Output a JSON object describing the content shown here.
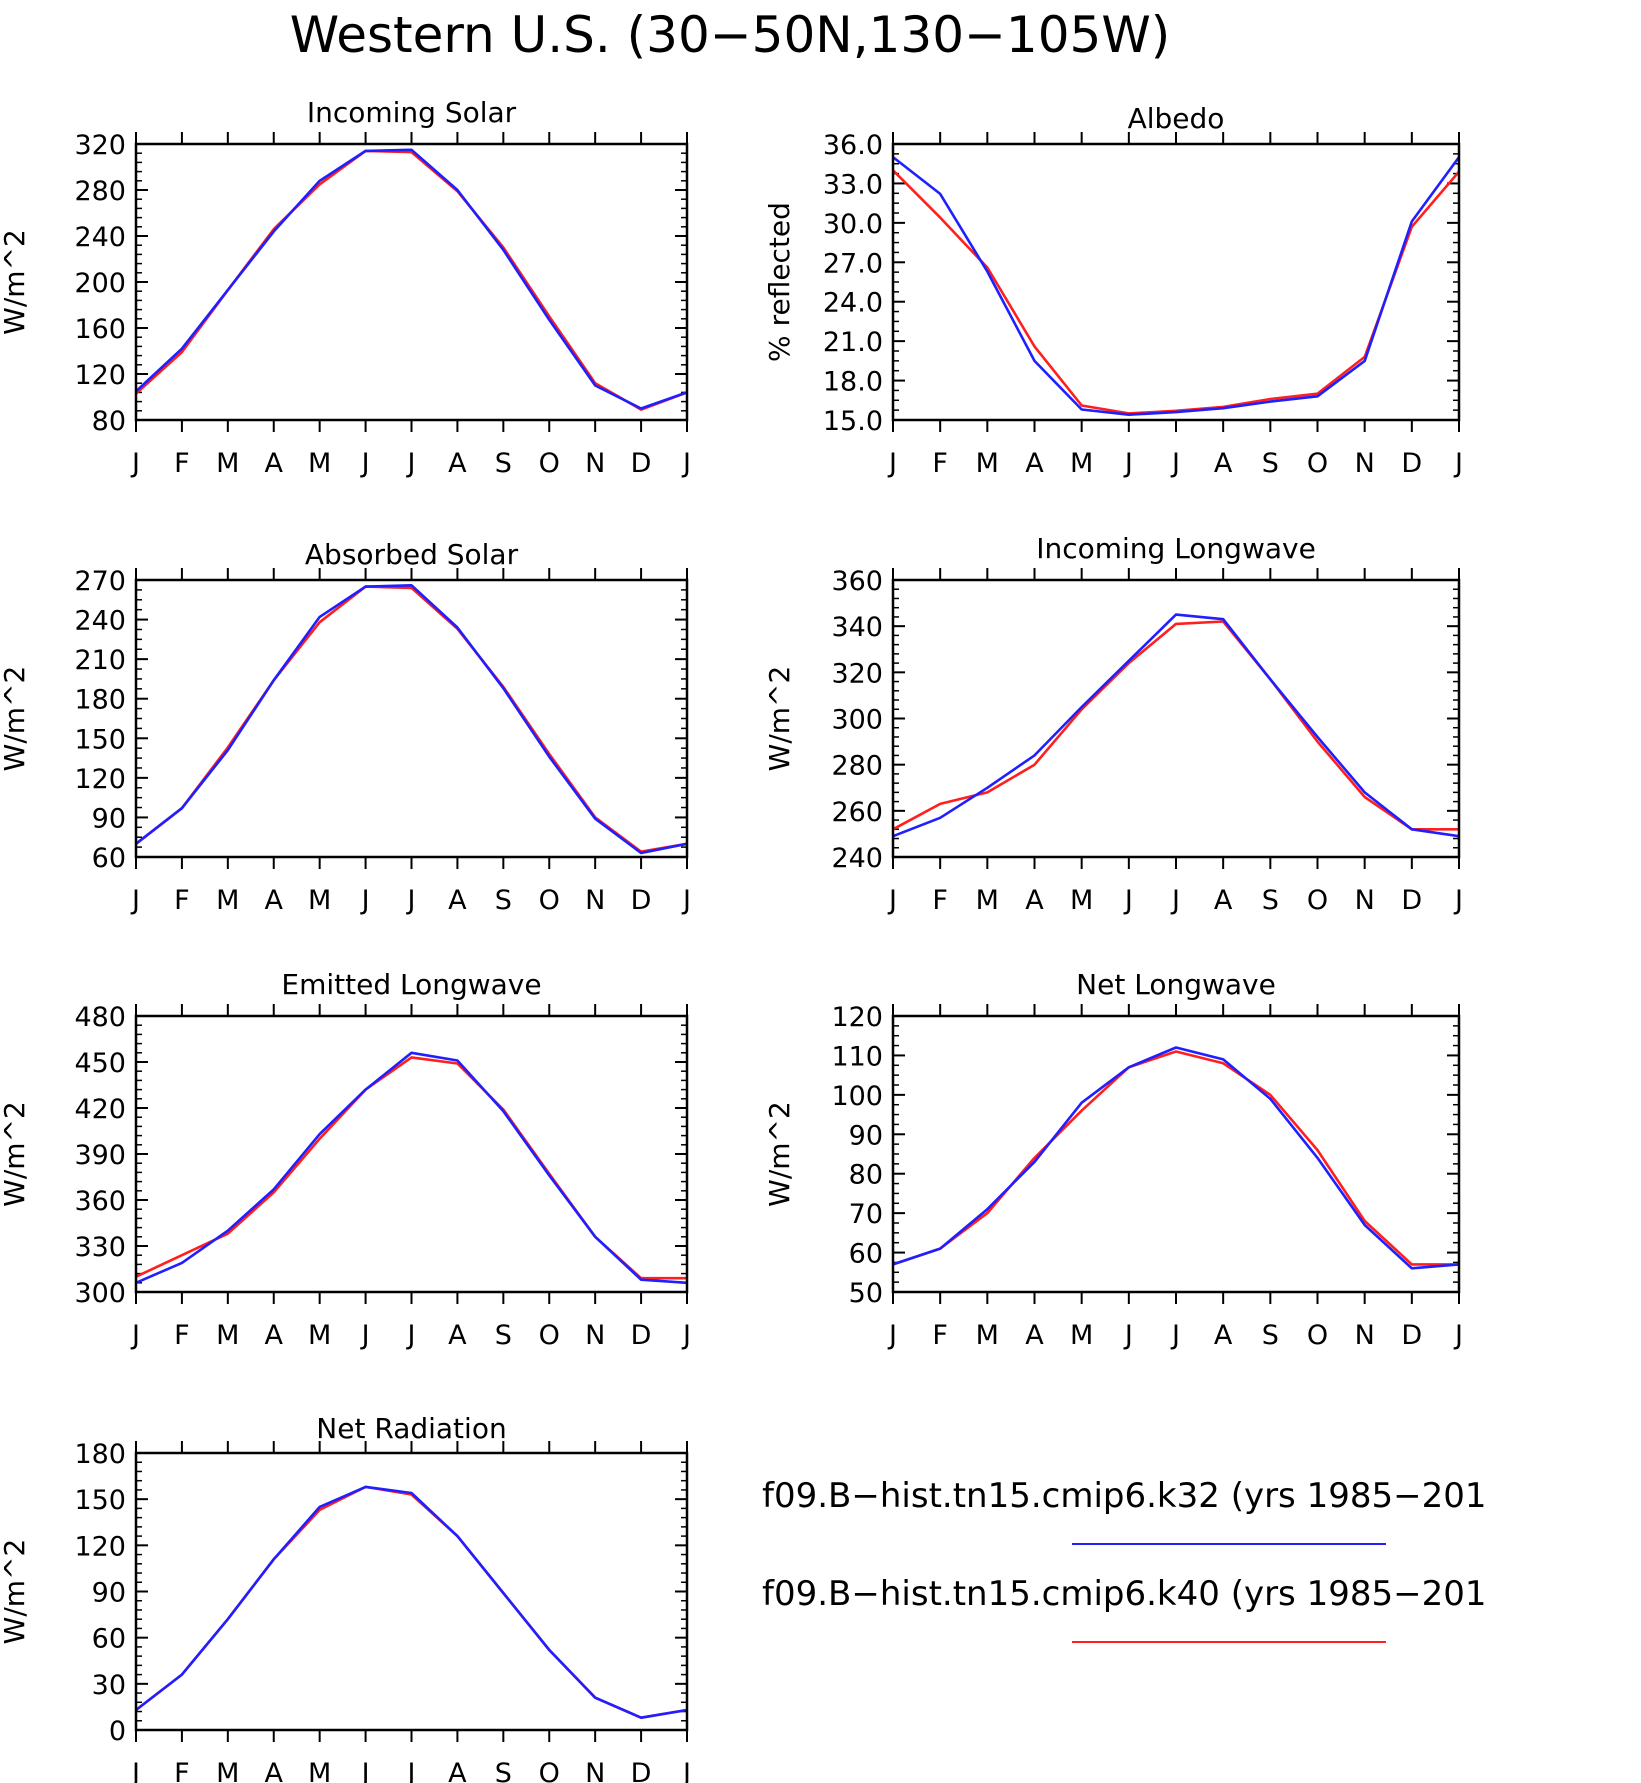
{
  "title": "Western U.S. (30−50N,130−105W)",
  "months": [
    "J",
    "F",
    "M",
    "A",
    "M",
    "J",
    "J",
    "A",
    "S",
    "O",
    "N",
    "D",
    "J"
  ],
  "colors": {
    "k32": "#1f1fff",
    "k40": "#ff1f1f",
    "axis": "#000000"
  },
  "legend": {
    "entries": [
      {
        "label": "f09.B−hist.tn15.cmip6.k32 (yrs 1985−201",
        "color": "#1f1fff"
      },
      {
        "label": "f09.B−hist.tn15.cmip6.k40 (yrs 1985−201",
        "color": "#ff1f1f"
      }
    ]
  },
  "chart_data": [
    {
      "type": "line",
      "title": "Incoming Solar",
      "ylabel": "W/m^2",
      "ylim": [
        80,
        320
      ],
      "yticks": [
        80,
        120,
        160,
        200,
        240,
        280,
        320
      ],
      "ytick_labels": [
        "80",
        "120",
        "160",
        "200",
        "240",
        "280",
        "320"
      ],
      "series": [
        {
          "name": "f09.B−hist.tn15.cmip6.k32",
          "values": [
            105,
            142,
            193,
            244,
            288,
            314,
            315,
            280,
            228,
            167,
            110,
            90,
            104
          ]
        },
        {
          "name": "f09.B−hist.tn15.cmip6.k40",
          "values": [
            103,
            139,
            193,
            246,
            285,
            314,
            313,
            279,
            230,
            170,
            112,
            89,
            104
          ]
        }
      ]
    },
    {
      "type": "line",
      "title": "Albedo",
      "ylabel": "% reflected",
      "ylim": [
        15,
        36
      ],
      "yticks": [
        15,
        18,
        21,
        24,
        27,
        30,
        33,
        36
      ],
      "ytick_labels": [
        "15.0",
        "18.0",
        "21.0",
        "24.0",
        "27.0",
        "30.0",
        "33.0",
        "36.0"
      ],
      "series": [
        {
          "name": "f09.B−hist.tn15.cmip6.k32",
          "values": [
            35.0,
            32.2,
            26.3,
            19.5,
            15.8,
            15.4,
            15.6,
            15.9,
            16.4,
            16.8,
            19.5,
            30.1,
            35.0
          ]
        },
        {
          "name": "f09.B−hist.tn15.cmip6.k40",
          "values": [
            34.0,
            30.4,
            26.6,
            20.6,
            16.1,
            15.5,
            15.7,
            16.0,
            16.6,
            17.0,
            19.8,
            29.7,
            33.9
          ]
        }
      ]
    },
    {
      "type": "line",
      "title": "Absorbed Solar",
      "ylabel": "W/m^2",
      "ylim": [
        60,
        270
      ],
      "yticks": [
        60,
        90,
        120,
        150,
        180,
        210,
        240,
        270
      ],
      "ytick_labels": [
        "60",
        "90",
        "120",
        "150",
        "180",
        "210",
        "240",
        "270"
      ],
      "series": [
        {
          "name": "f09.B−hist.tn15.cmip6.k32",
          "values": [
            70,
            97,
            141,
            194,
            242,
            265,
            266,
            234,
            188,
            136,
            89,
            63,
            70
          ]
        },
        {
          "name": "f09.B−hist.tn15.cmip6.k40",
          "values": [
            70,
            97,
            143,
            194,
            238,
            265,
            264,
            233,
            189,
            138,
            90,
            64,
            70
          ]
        }
      ]
    },
    {
      "type": "line",
      "title": "Incoming Longwave",
      "ylabel": "W/m^2",
      "ylim": [
        240,
        360
      ],
      "yticks": [
        240,
        260,
        280,
        300,
        320,
        340,
        360
      ],
      "ytick_labels": [
        "240",
        "260",
        "280",
        "300",
        "320",
        "340",
        "360"
      ],
      "series": [
        {
          "name": "f09.B−hist.tn15.cmip6.k32",
          "values": [
            249,
            257,
            270,
            284,
            305,
            325,
            345,
            343,
            317,
            292,
            268,
            252,
            249
          ]
        },
        {
          "name": "f09.B−hist.tn15.cmip6.k40",
          "values": [
            252,
            263,
            268,
            280,
            304,
            324,
            341,
            342,
            317,
            290,
            266,
            252,
            252
          ]
        }
      ]
    },
    {
      "type": "line",
      "title": "Emitted Longwave",
      "ylabel": "W/m^2",
      "ylim": [
        300,
        480
      ],
      "yticks": [
        300,
        330,
        360,
        390,
        420,
        450,
        480
      ],
      "ytick_labels": [
        "300",
        "330",
        "360",
        "390",
        "420",
        "450",
        "480"
      ],
      "series": [
        {
          "name": "f09.B−hist.tn15.cmip6.k32",
          "values": [
            306,
            319,
            340,
            367,
            403,
            432,
            456,
            451,
            418,
            376,
            336,
            308,
            306
          ]
        },
        {
          "name": "f09.B−hist.tn15.cmip6.k40",
          "values": [
            310,
            324,
            338,
            365,
            400,
            432,
            453,
            449,
            419,
            377,
            336,
            309,
            309
          ]
        }
      ]
    },
    {
      "type": "line",
      "title": "Net Longwave",
      "ylabel": "W/m^2",
      "ylim": [
        50,
        120
      ],
      "yticks": [
        50,
        60,
        70,
        80,
        90,
        100,
        110,
        120
      ],
      "ytick_labels": [
        "50",
        "60",
        "70",
        "80",
        "90",
        "100",
        "110",
        "120"
      ],
      "series": [
        {
          "name": "f09.B−hist.tn15.cmip6.k32",
          "values": [
            57,
            61,
            71,
            83,
            98,
            107,
            112,
            109,
            99,
            84,
            67,
            56,
            57
          ]
        },
        {
          "name": "f09.B−hist.tn15.cmip6.k40",
          "values": [
            57,
            61,
            70,
            84,
            96,
            107,
            111,
            108,
            100,
            86,
            68,
            57,
            57
          ]
        }
      ]
    },
    {
      "type": "line",
      "title": "Net Radiation",
      "ylabel": "W/m^2",
      "ylim": [
        0,
        180
      ],
      "yticks": [
        0,
        30,
        60,
        90,
        120,
        150,
        180
      ],
      "ytick_labels": [
        "0",
        "30",
        "60",
        "90",
        "120",
        "150",
        "180"
      ],
      "series": [
        {
          "name": "f09.B−hist.tn15.cmip6.k32",
          "values": [
            13,
            36,
            72,
            111,
            145,
            158,
            154,
            126,
            89,
            52,
            21,
            8,
            13
          ]
        },
        {
          "name": "f09.B−hist.tn15.cmip6.k40",
          "values": [
            13,
            36,
            72,
            111,
            143,
            158,
            153,
            126,
            89,
            52,
            21,
            8,
            13
          ]
        }
      ]
    }
  ]
}
